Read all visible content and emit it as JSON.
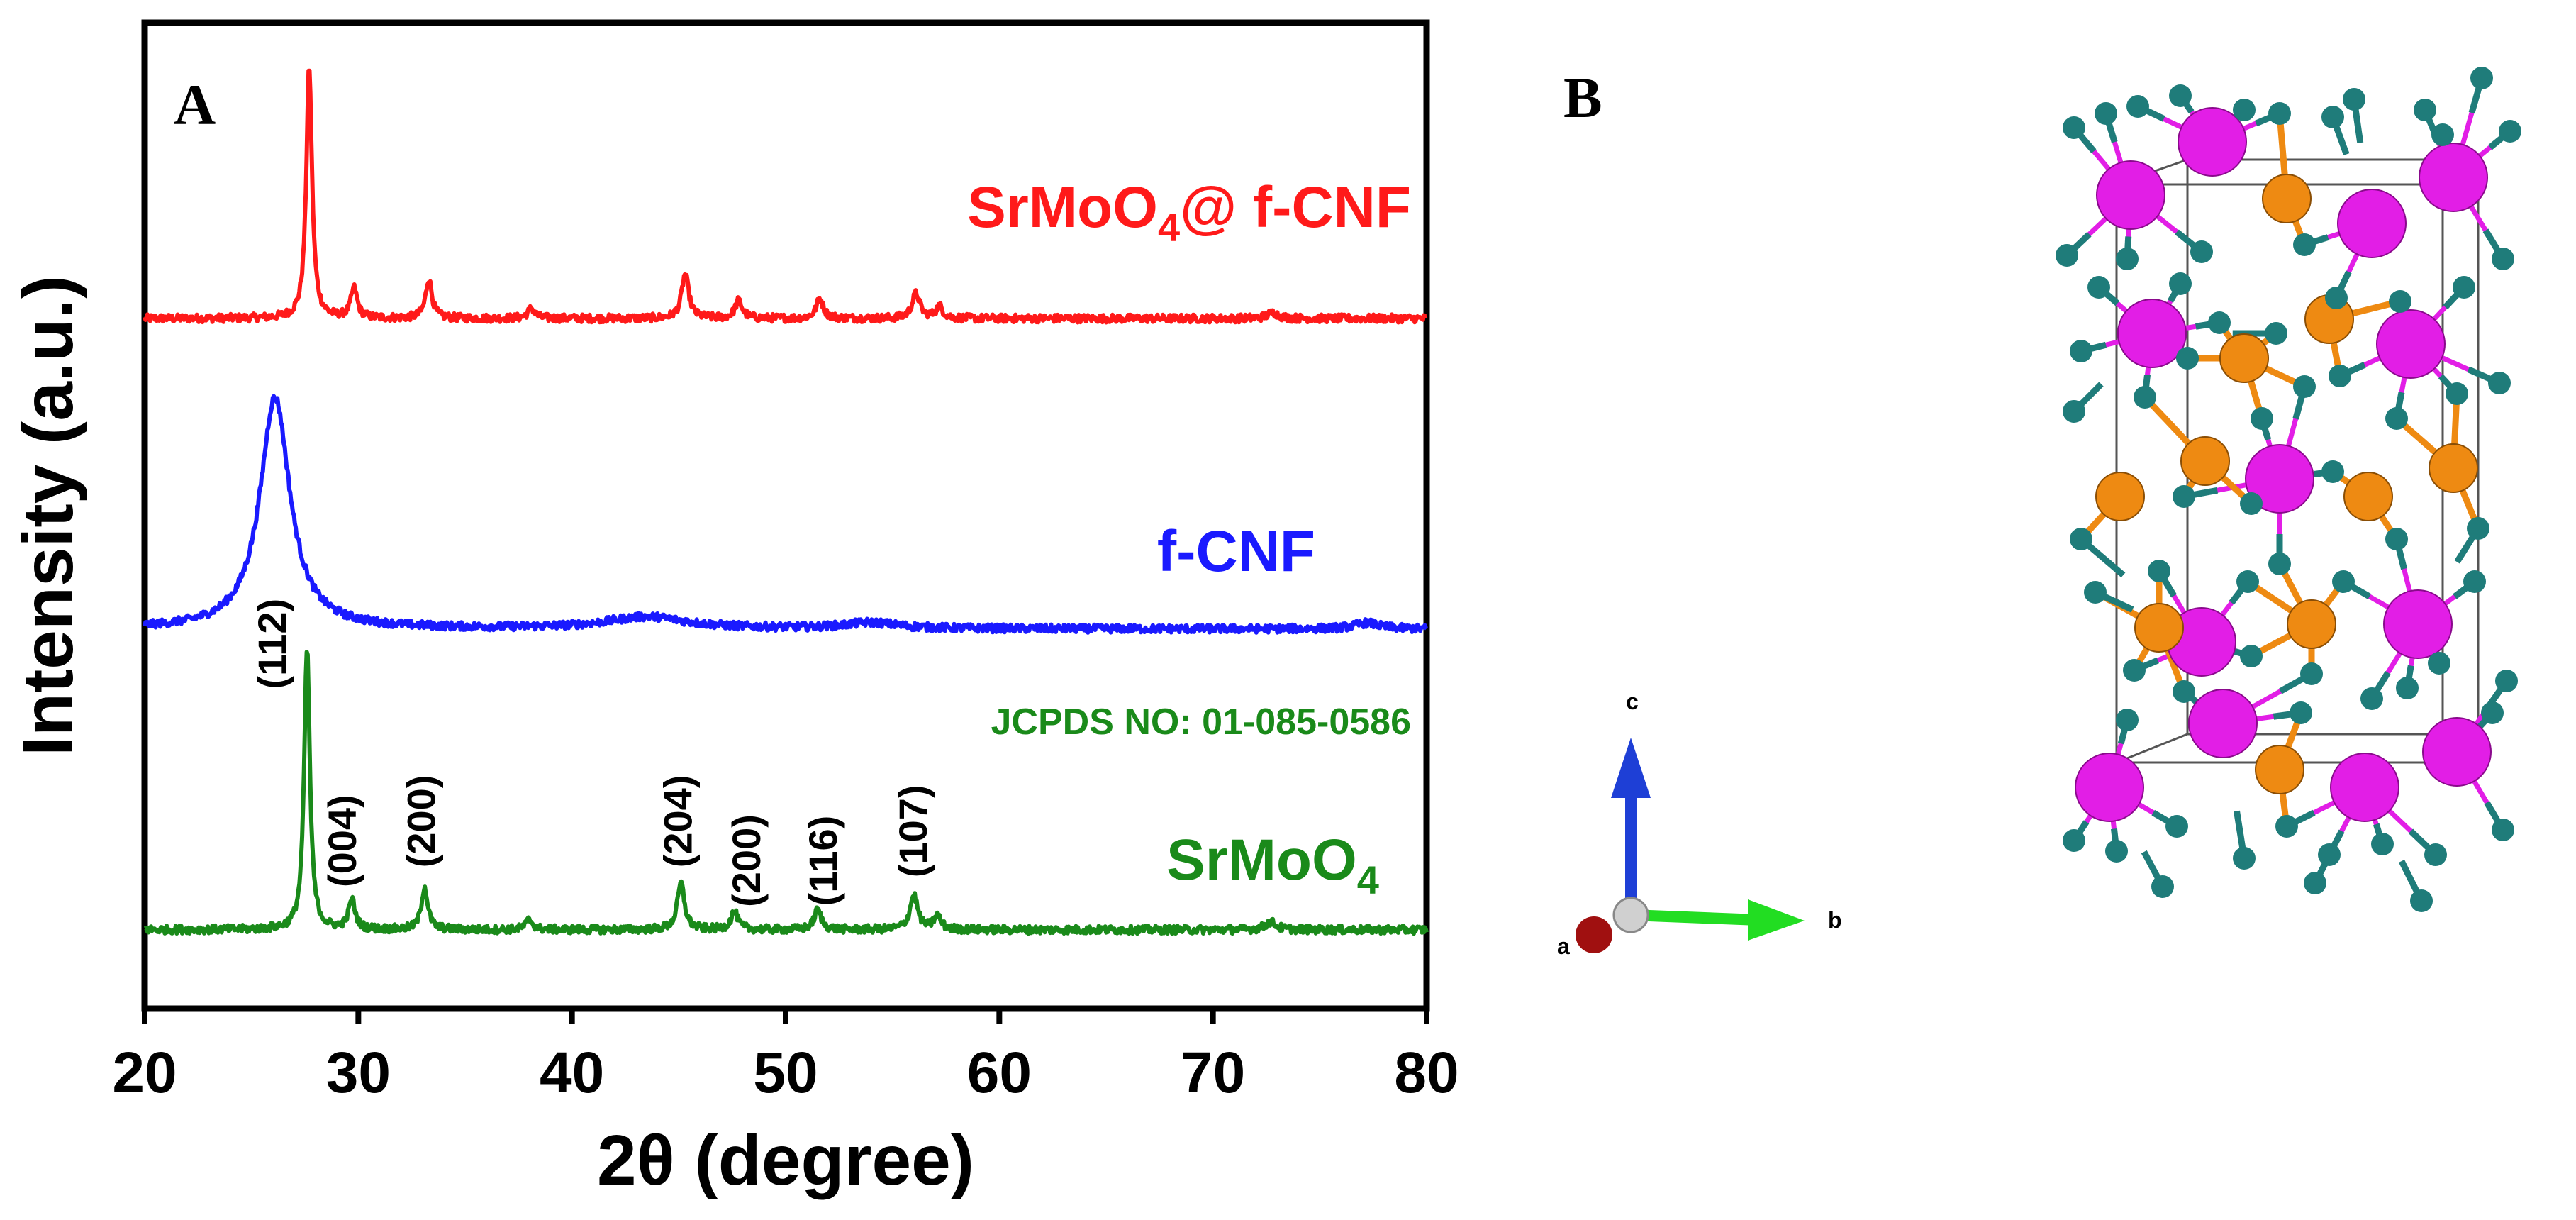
{
  "panel_a_label": "A",
  "panel_b_label": "B",
  "chart_data": {
    "type": "line",
    "xlabel": "2θ (degree)",
    "ylabel": "Intensity (a.u.)",
    "xlim": [
      20,
      80
    ],
    "xticks": [
      20,
      30,
      40,
      50,
      60,
      70,
      80
    ],
    "ylim": [
      0,
      1
    ],
    "yticks": [],
    "series": [
      {
        "name": "SrMoO4@ f-CNF",
        "label_main": "SrMoO",
        "label_sub": "4",
        "label_suffix": "@ f-CNF",
        "color": "#ff1a1a",
        "baseline": 0.7,
        "peaks": [
          {
            "x": 27.7,
            "h": 0.255,
            "w": 0.16
          },
          {
            "x": 29.8,
            "h": 0.03,
            "w": 0.18
          },
          {
            "x": 33.3,
            "h": 0.04,
            "w": 0.18
          },
          {
            "x": 38.1,
            "h": 0.01,
            "w": 0.2
          },
          {
            "x": 45.3,
            "h": 0.045,
            "w": 0.2
          },
          {
            "x": 47.8,
            "h": 0.018,
            "w": 0.2
          },
          {
            "x": 51.6,
            "h": 0.02,
            "w": 0.2
          },
          {
            "x": 56.1,
            "h": 0.025,
            "w": 0.22
          },
          {
            "x": 57.2,
            "h": 0.012,
            "w": 0.2
          },
          {
            "x": 72.8,
            "h": 0.006,
            "w": 0.3
          }
        ]
      },
      {
        "name": "f-CNF",
        "label_main": "f-CNF",
        "color": "#1a1aff",
        "baseline": 0.385,
        "peaks": [
          {
            "x": 26.1,
            "h": 0.235,
            "w": 0.85
          },
          {
            "x": 43.5,
            "h": 0.012,
            "w": 2.3
          },
          {
            "x": 54.0,
            "h": 0.006,
            "w": 1.5
          },
          {
            "x": 77.2,
            "h": 0.006,
            "w": 0.7
          }
        ]
      },
      {
        "name": "SrMoO4",
        "label_main": "SrMoO",
        "label_sub": "4",
        "color": "#1a8a1a",
        "baseline": 0.08,
        "peaks": [
          {
            "x": 27.6,
            "h": 0.285,
            "w": 0.16
          },
          {
            "x": 29.7,
            "h": 0.03,
            "w": 0.18
          },
          {
            "x": 33.1,
            "h": 0.043,
            "w": 0.18
          },
          {
            "x": 38.0,
            "h": 0.01,
            "w": 0.2
          },
          {
            "x": 45.1,
            "h": 0.047,
            "w": 0.2
          },
          {
            "x": 47.6,
            "h": 0.018,
            "w": 0.2
          },
          {
            "x": 51.5,
            "h": 0.02,
            "w": 0.2
          },
          {
            "x": 56.0,
            "h": 0.035,
            "w": 0.22
          },
          {
            "x": 57.1,
            "h": 0.014,
            "w": 0.2
          },
          {
            "x": 72.7,
            "h": 0.008,
            "w": 0.3
          }
        ]
      }
    ],
    "annotations": [
      {
        "text": "(112)",
        "x": 26.0,
        "y": 0.37
      },
      {
        "text": "(004)",
        "x": 29.3,
        "y": 0.17
      },
      {
        "text": "(200)",
        "x": 33.0,
        "y": 0.19
      },
      {
        "text": "(204)",
        "x": 45.0,
        "y": 0.19
      },
      {
        "text": "(200)",
        "x": 48.2,
        "y": 0.15
      },
      {
        "text": "(116)",
        "x": 51.8,
        "y": 0.15
      },
      {
        "text": "(107)",
        "x": 56.0,
        "y": 0.18
      }
    ],
    "reference": "JCPDS NO: 01-085-0586"
  },
  "axis_triad": {
    "a_label": "a",
    "b_label": "b",
    "c_label": "c",
    "colors": {
      "a": "#a01010",
      "b": "#22dd22",
      "c": "#1e3fd6",
      "origin": "#d0d0d0"
    }
  },
  "crystal": {
    "atom_colors": {
      "sr": "#e21ee6",
      "mo": "#ee8a12",
      "o": "#1f7c7a"
    }
  }
}
